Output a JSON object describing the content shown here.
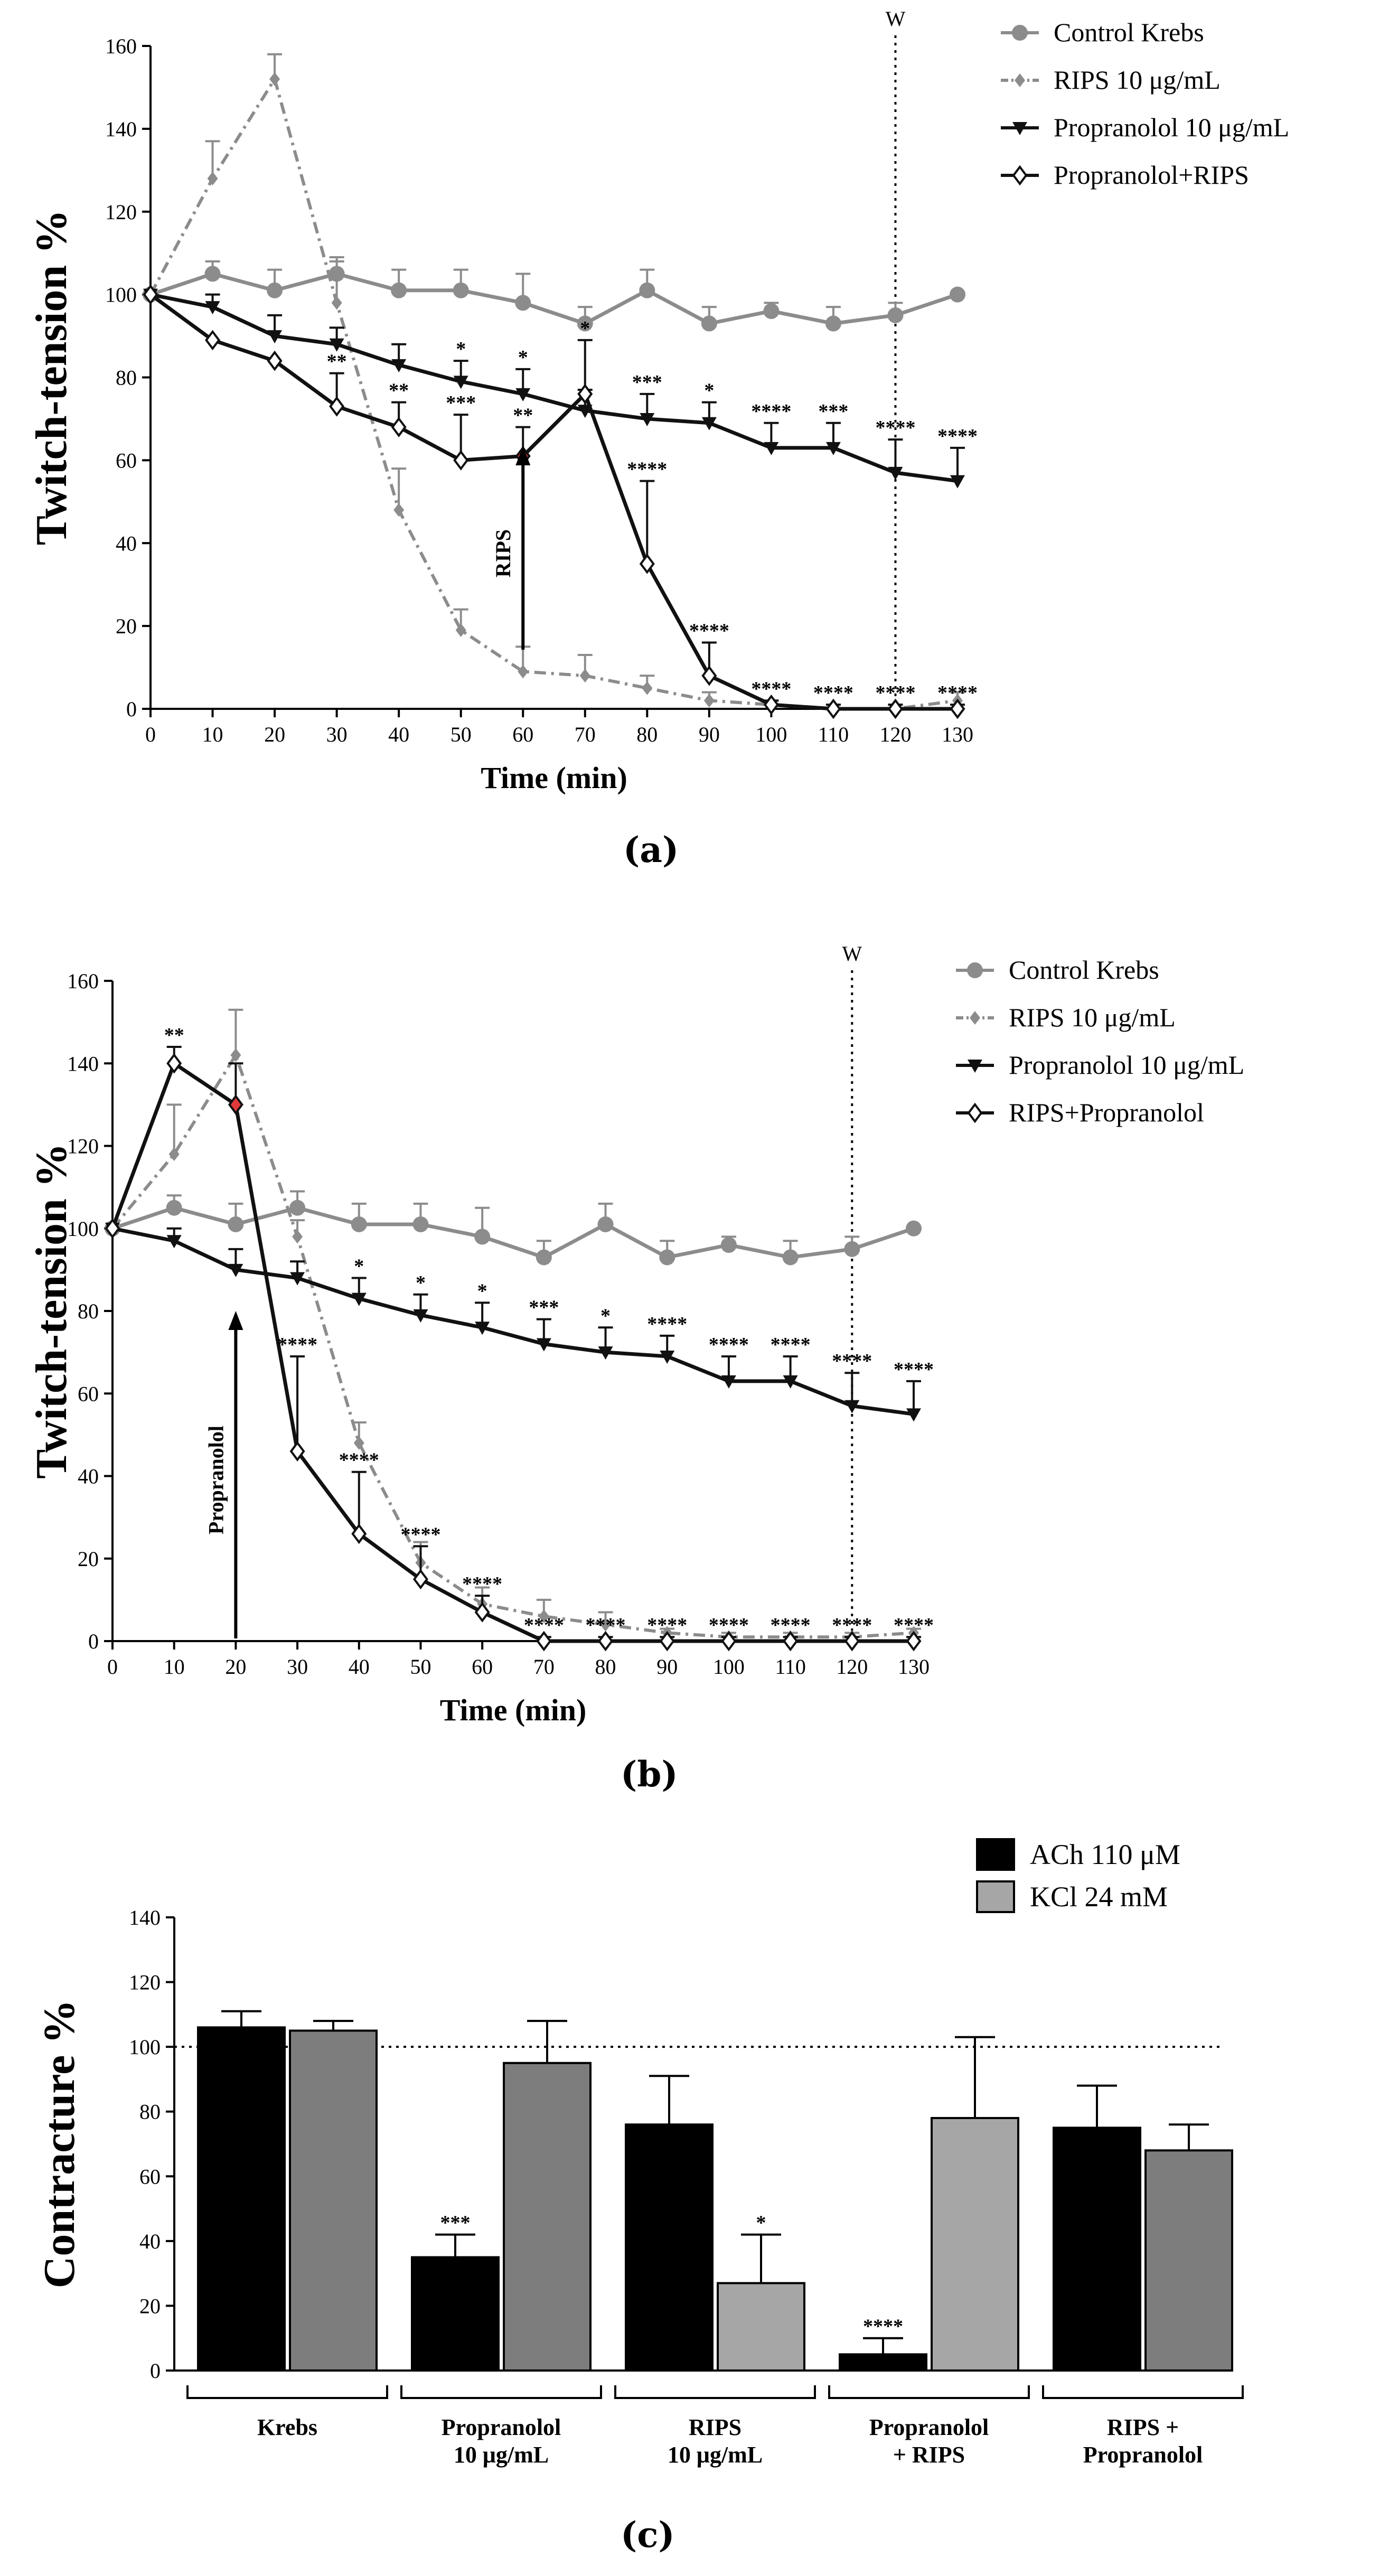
{
  "panels": [
    {
      "label": "(a)"
    },
    {
      "label": "(b)"
    },
    {
      "label": "(c)"
    }
  ],
  "chart_data": [
    {
      "type": "line",
      "xlabel": "Time (min)",
      "ylabel": "Twitch-tension %",
      "x": [
        0,
        10,
        20,
        30,
        40,
        50,
        60,
        70,
        80,
        90,
        100,
        110,
        120,
        130
      ],
      "xlim": [
        0,
        130
      ],
      "ylim": [
        0,
        160
      ],
      "yticks": [
        0,
        20,
        40,
        60,
        80,
        100,
        120,
        140,
        160
      ],
      "xticks": [
        0,
        10,
        20,
        30,
        40,
        50,
        60,
        70,
        80,
        90,
        100,
        110,
        120,
        130
      ],
      "legend_position": "top-right",
      "washout": {
        "x": 120,
        "label": "W"
      },
      "arrow": {
        "x": 60,
        "label": "RIPS"
      },
      "series": [
        {
          "name": "Control Krebs",
          "color": "#8c8c8c",
          "marker": "circle",
          "dash": "solid",
          "values": [
            100,
            105,
            101,
            105,
            101,
            101,
            98,
            93,
            101,
            93,
            96,
            93,
            95,
            100
          ],
          "errors": [
            0,
            3,
            5,
            4,
            5,
            5,
            7,
            4,
            5,
            4,
            2,
            4,
            3,
            0
          ]
        },
        {
          "name": "RIPS 10 μg/mL",
          "color": "#8c8c8c",
          "marker": "diamond-small",
          "dash": "dashdot",
          "values": [
            100,
            128,
            152,
            98,
            48,
            19,
            9,
            8,
            5,
            2,
            1,
            0,
            0,
            2
          ],
          "errors": [
            0,
            9,
            6,
            10,
            10,
            5,
            6,
            5,
            3,
            2,
            1,
            1,
            1,
            2
          ]
        },
        {
          "name": "Propranolol 10 μg/mL",
          "color": "#111111",
          "marker": "triangle-down",
          "dash": "solid",
          "values": [
            100,
            97,
            90,
            88,
            83,
            79,
            76,
            72,
            70,
            69,
            63,
            63,
            57,
            55
          ],
          "errors": [
            0,
            3,
            5,
            4,
            5,
            5,
            6,
            5,
            6,
            5,
            6,
            6,
            8,
            8
          ],
          "stars": [
            "",
            "",
            "",
            "",
            "",
            "*",
            "*",
            "",
            "***",
            "*",
            "****",
            "***",
            "****",
            "****"
          ]
        },
        {
          "name": "Propranolol+RIPS",
          "color": "#111111",
          "marker": "diamond-open",
          "dash": "solid",
          "values": [
            100,
            89,
            84,
            73,
            68,
            60,
            61,
            76,
            35,
            8,
            1,
            0,
            0,
            0
          ],
          "errors": [
            0,
            0,
            0,
            8,
            6,
            11,
            7,
            13,
            20,
            8,
            1,
            1,
            1,
            1
          ],
          "highlight_index": 6,
          "stars": [
            "",
            "",
            "",
            "**",
            "**",
            "***",
            "**",
            "*",
            "****",
            "****",
            "****",
            "****",
            "****",
            "****"
          ]
        }
      ]
    },
    {
      "type": "line",
      "xlabel": "Time (min)",
      "ylabel": "Twitch-tension %",
      "x": [
        0,
        10,
        20,
        30,
        40,
        50,
        60,
        70,
        80,
        90,
        100,
        110,
        120,
        130
      ],
      "xlim": [
        0,
        130
      ],
      "ylim": [
        0,
        160
      ],
      "yticks": [
        0,
        20,
        40,
        60,
        80,
        100,
        120,
        140,
        160
      ],
      "xticks": [
        0,
        10,
        20,
        30,
        40,
        50,
        60,
        70,
        80,
        90,
        100,
        110,
        120,
        130
      ],
      "legend_position": "top-right",
      "washout": {
        "x": 120,
        "label": "W"
      },
      "arrow": {
        "x": 20,
        "label": "Propranolol"
      },
      "series": [
        {
          "name": "Control Krebs",
          "color": "#8c8c8c",
          "marker": "circle",
          "dash": "solid",
          "values": [
            100,
            105,
            101,
            105,
            101,
            101,
            98,
            93,
            101,
            93,
            96,
            93,
            95,
            100
          ],
          "errors": [
            0,
            3,
            5,
            4,
            5,
            5,
            7,
            4,
            5,
            4,
            2,
            4,
            3,
            0
          ]
        },
        {
          "name": "RIPS 10 μg/mL",
          "color": "#8c8c8c",
          "marker": "diamond-small",
          "dash": "dashdot",
          "values": [
            100,
            118,
            142,
            98,
            48,
            19,
            9,
            6,
            4,
            2,
            1,
            1,
            1,
            2
          ],
          "errors": [
            0,
            12,
            11,
            4,
            5,
            5,
            4,
            4,
            3,
            1,
            1,
            1,
            1,
            1
          ]
        },
        {
          "name": "Propranolol 10 μg/mL",
          "color": "#111111",
          "marker": "triangle-down",
          "dash": "solid",
          "values": [
            100,
            97,
            90,
            88,
            83,
            79,
            76,
            72,
            70,
            69,
            63,
            63,
            57,
            55
          ],
          "errors": [
            0,
            3,
            5,
            4,
            5,
            5,
            6,
            6,
            6,
            5,
            6,
            6,
            8,
            8
          ],
          "stars": [
            "",
            "",
            "",
            "",
            "*",
            "*",
            "*",
            "***",
            "*",
            "****",
            "****",
            "****",
            "****",
            "****"
          ]
        },
        {
          "name": "RIPS+Propranolol",
          "color": "#111111",
          "marker": "diamond-open",
          "dash": "solid",
          "values": [
            100,
            140,
            130,
            46,
            26,
            15,
            7,
            0,
            0,
            0,
            0,
            0,
            0,
            0
          ],
          "errors": [
            0,
            4,
            10,
            23,
            15,
            8,
            4,
            1,
            1,
            1,
            1,
            1,
            1,
            1
          ],
          "highlight_index": 2,
          "stars": [
            "",
            "**",
            "",
            "****",
            "****",
            "****",
            "****",
            "****",
            "****",
            "****",
            "****",
            "****",
            "****",
            "****"
          ]
        }
      ]
    },
    {
      "type": "bar",
      "ylabel": "Contracture %",
      "ylim": [
        0,
        140
      ],
      "yticks": [
        0,
        20,
        40,
        60,
        80,
        100,
        120,
        140
      ],
      "reference_line": 100,
      "legend_position": "top-right",
      "categories": [
        [
          "Krebs"
        ],
        [
          "Propranolol",
          "10 μg/mL"
        ],
        [
          "RIPS",
          "10 μg/mL"
        ],
        [
          "Propranolol",
          "+ RIPS"
        ],
        [
          "RIPS +",
          "Propranolol"
        ]
      ],
      "series": [
        {
          "name": "ACh 110 μM",
          "color": "#000000",
          "values": [
            106,
            35,
            76,
            5,
            75
          ],
          "errors": [
            5,
            7,
            15,
            5,
            13
          ],
          "stars": [
            "",
            "***",
            "",
            "****",
            ""
          ]
        },
        {
          "name": "KCl 24 mM",
          "colors": [
            "#7d7d7d",
            "#7d7d7d",
            "#a6a6a6",
            "#a6a6a6",
            "#7d7d7d"
          ],
          "legend_color": "#a6a6a6",
          "values": [
            105,
            95,
            27,
            78,
            68
          ],
          "errors": [
            3,
            13,
            15,
            25,
            8
          ],
          "stars": [
            "",
            "",
            "*",
            "",
            ""
          ]
        }
      ]
    }
  ]
}
